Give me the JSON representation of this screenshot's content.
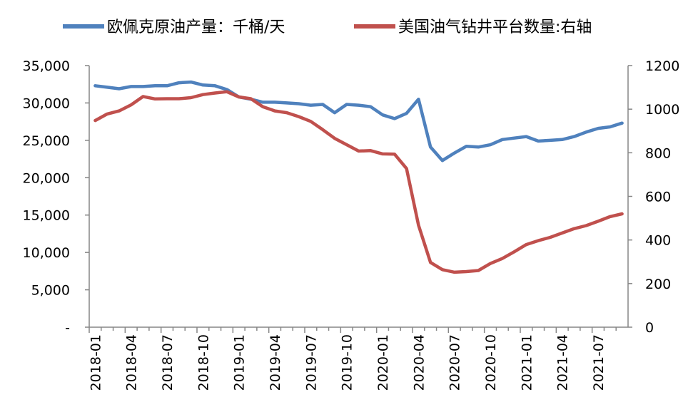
{
  "chart_data": {
    "type": "line",
    "title": "",
    "categories": [
      "2018-01",
      "2018-02",
      "2018-03",
      "2018-04",
      "2018-05",
      "2018-06",
      "2018-07",
      "2018-08",
      "2018-09",
      "2018-10",
      "2018-11",
      "2018-12",
      "2019-01",
      "2019-02",
      "2019-03",
      "2019-04",
      "2019-05",
      "2019-06",
      "2019-07",
      "2019-08",
      "2019-09",
      "2019-10",
      "2019-11",
      "2019-12",
      "2020-01",
      "2020-02",
      "2020-03",
      "2020-04",
      "2020-05",
      "2020-06",
      "2020-07",
      "2020-08",
      "2020-09",
      "2020-10",
      "2020-11",
      "2020-12",
      "2021-01",
      "2021-02",
      "2021-03",
      "2021-04",
      "2021-05",
      "2021-06",
      "2021-07",
      "2021-08",
      "2021-09"
    ],
    "x_tick_labels": [
      "2018-01",
      "2018-04",
      "2018-07",
      "2018-10",
      "2019-01",
      "2019-04",
      "2019-07",
      "2019-10",
      "2020-01",
      "2020-04",
      "2020-07",
      "2020-10",
      "2021-01",
      "2021-04",
      "2021-07"
    ],
    "y_left": {
      "min": 0,
      "max": 35000,
      "ticks": [
        0,
        5000,
        10000,
        15000,
        20000,
        25000,
        30000,
        35000
      ],
      "tick_labels": [
        "-",
        "5,000",
        "10,000",
        "15,000",
        "20,000",
        "25,000",
        "30,000",
        "35,000"
      ]
    },
    "y_right": {
      "min": 0,
      "max": 1200,
      "ticks": [
        0,
        200,
        400,
        600,
        800,
        1000,
        1200
      ],
      "tick_labels": [
        "0",
        "200",
        "400",
        "600",
        "800",
        "1000",
        "1200"
      ]
    },
    "legend_position": "top",
    "grid": false,
    "series": [
      {
        "name": "欧佩克原油产量：千桶/天",
        "color": "#4f81bd",
        "axis": "left",
        "values": [
          32300,
          32100,
          31900,
          32200,
          32200,
          32300,
          32300,
          32700,
          32800,
          32400,
          32300,
          31800,
          30800,
          30500,
          30100,
          30100,
          30000,
          29900,
          29700,
          29800,
          28700,
          29800,
          29700,
          29500,
          28400,
          27900,
          28600,
          30500,
          24100,
          22300,
          23300,
          24200,
          24100,
          24400,
          25100,
          25300,
          25500,
          24900,
          25000,
          25100,
          25500,
          26100,
          26600,
          26800,
          27300
        ]
      },
      {
        "name": "美国油气钻井平台数量:右轴",
        "color": "#c0504d",
        "axis": "right",
        "values": [
          948,
          978,
          992,
          1020,
          1058,
          1047,
          1048,
          1048,
          1053,
          1067,
          1074,
          1080,
          1056,
          1048,
          1011,
          992,
          984,
          966,
          944,
          906,
          866,
          837,
          808,
          810,
          795,
          794,
          728,
          468,
          297,
          264,
          252,
          255,
          260,
          292,
          315,
          346,
          379,
          397,
          412,
          432,
          452,
          466,
          486,
          507,
          520
        ]
      }
    ]
  }
}
